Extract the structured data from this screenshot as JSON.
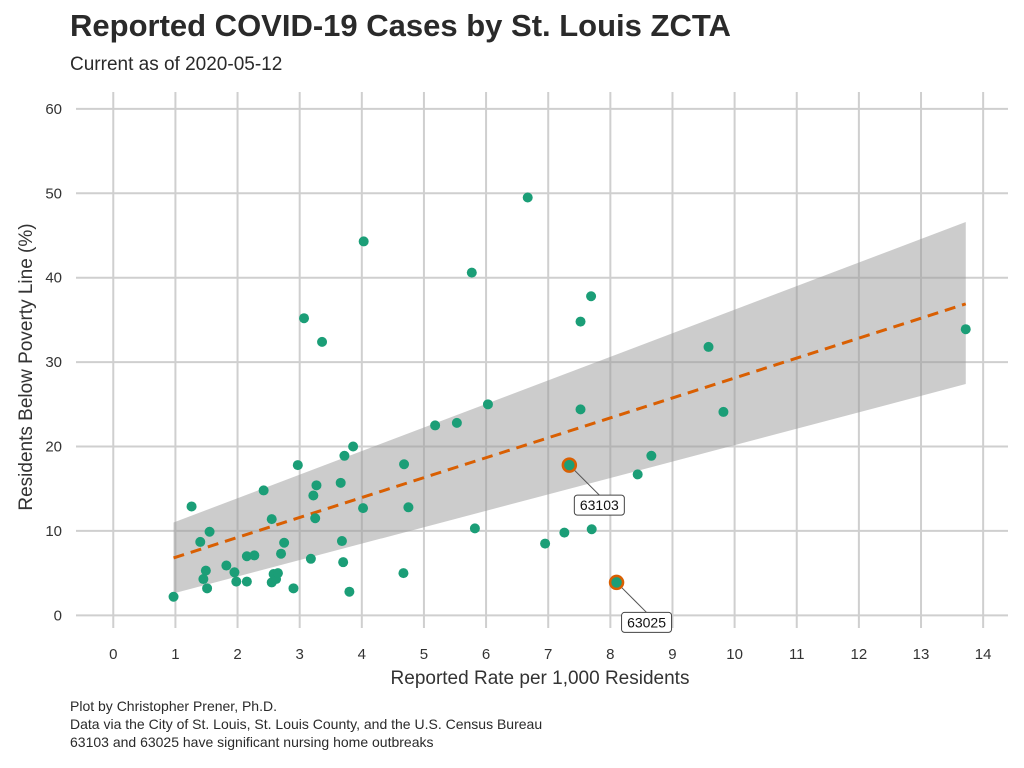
{
  "chart_data": {
    "type": "scatter",
    "title": "Reported COVID-19 Cases by St. Louis ZCTA",
    "subtitle": "Current as of 2020-05-12",
    "xlabel": "Reported Rate per 1,000 Residents",
    "ylabel": "Residents Below Poverty Line (%)",
    "xlim": [
      -0.6,
      14.4
    ],
    "ylim": [
      -1.5,
      62
    ],
    "x_ticks": [
      0,
      1,
      2,
      3,
      4,
      5,
      6,
      7,
      8,
      9,
      10,
      11,
      12,
      13,
      14
    ],
    "y_ticks": [
      0,
      10,
      20,
      30,
      40,
      50,
      60
    ],
    "grid": true,
    "point_color": "#1b9e77",
    "highlight_color": "#d95f02",
    "points": [
      {
        "x": 0.97,
        "y": 2.2
      },
      {
        "x": 1.26,
        "y": 12.9
      },
      {
        "x": 1.4,
        "y": 8.7
      },
      {
        "x": 1.45,
        "y": 4.3
      },
      {
        "x": 1.49,
        "y": 5.3
      },
      {
        "x": 1.51,
        "y": 3.2
      },
      {
        "x": 1.55,
        "y": 9.9
      },
      {
        "x": 1.82,
        "y": 5.9
      },
      {
        "x": 1.95,
        "y": 5.1
      },
      {
        "x": 1.98,
        "y": 4.0
      },
      {
        "x": 2.15,
        "y": 7.0
      },
      {
        "x": 2.15,
        "y": 4.0
      },
      {
        "x": 2.27,
        "y": 7.1
      },
      {
        "x": 2.42,
        "y": 14.8
      },
      {
        "x": 2.55,
        "y": 11.4
      },
      {
        "x": 2.55,
        "y": 3.9
      },
      {
        "x": 2.58,
        "y": 4.9
      },
      {
        "x": 2.62,
        "y": 4.3
      },
      {
        "x": 2.65,
        "y": 5.0
      },
      {
        "x": 2.7,
        "y": 7.3
      },
      {
        "x": 2.75,
        "y": 8.6
      },
      {
        "x": 2.9,
        "y": 3.2
      },
      {
        "x": 2.97,
        "y": 17.8
      },
      {
        "x": 3.07,
        "y": 35.2
      },
      {
        "x": 3.18,
        "y": 6.7
      },
      {
        "x": 3.22,
        "y": 14.2
      },
      {
        "x": 3.25,
        "y": 11.5
      },
      {
        "x": 3.27,
        "y": 15.4
      },
      {
        "x": 3.36,
        "y": 32.4
      },
      {
        "x": 3.66,
        "y": 15.7
      },
      {
        "x": 3.68,
        "y": 8.8
      },
      {
        "x": 3.7,
        "y": 6.3
      },
      {
        "x": 3.72,
        "y": 18.9
      },
      {
        "x": 3.8,
        "y": 2.8
      },
      {
        "x": 3.86,
        "y": 20.0
      },
      {
        "x": 4.02,
        "y": 12.7
      },
      {
        "x": 4.03,
        "y": 44.3
      },
      {
        "x": 4.67,
        "y": 5.0
      },
      {
        "x": 4.68,
        "y": 17.9
      },
      {
        "x": 4.75,
        "y": 12.8
      },
      {
        "x": 5.18,
        "y": 22.5
      },
      {
        "x": 5.53,
        "y": 22.8
      },
      {
        "x": 5.77,
        "y": 40.6
      },
      {
        "x": 5.82,
        "y": 10.3
      },
      {
        "x": 6.03,
        "y": 25.0
      },
      {
        "x": 6.67,
        "y": 49.5
      },
      {
        "x": 6.95,
        "y": 8.5
      },
      {
        "x": 7.26,
        "y": 9.8
      },
      {
        "x": 7.52,
        "y": 34.8
      },
      {
        "x": 7.52,
        "y": 24.4
      },
      {
        "x": 7.69,
        "y": 37.8
      },
      {
        "x": 7.7,
        "y": 10.2
      },
      {
        "x": 8.44,
        "y": 16.7
      },
      {
        "x": 8.66,
        "y": 18.9
      },
      {
        "x": 9.58,
        "y": 31.8
      },
      {
        "x": 9.82,
        "y": 24.1
      },
      {
        "x": 13.72,
        "y": 33.9
      }
    ],
    "highlights": [
      {
        "label": "63103",
        "x": 7.34,
        "y": 17.8
      },
      {
        "label": "63025",
        "x": 8.1,
        "y": 3.9
      }
    ],
    "trend": {
      "type": "linear",
      "color": "#d95f02",
      "x_range": [
        0.97,
        13.72
      ],
      "line": [
        6.8,
        36.9
      ],
      "band_lower": [
        2.6,
        27.4
      ],
      "band_upper": [
        11.0,
        46.6
      ]
    },
    "caption": [
      "Plot by Christopher Prener, Ph.D.",
      "Data via the City of St. Louis, St. Louis County, and the U.S. Census Bureau",
      "63103 and 63025 have significant nursing home outbreaks"
    ]
  }
}
